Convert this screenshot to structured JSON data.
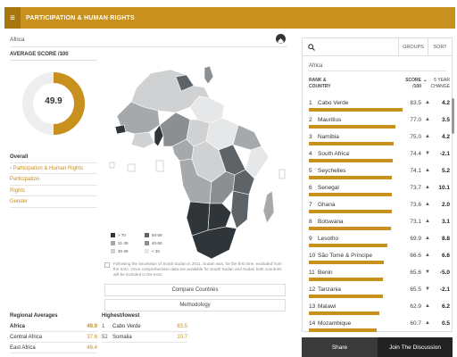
{
  "header": {
    "title": "PARTICIPATION & HUMAN RIGHTS",
    "menu_icon": "hamburger-icon"
  },
  "breadcrumb": "Africa",
  "average": {
    "title": "AVERAGE SCORE /100",
    "value": "49.9",
    "fraction": 0.499,
    "color": "#c8901c"
  },
  "nav": {
    "items": [
      {
        "label": "Overall"
      },
      {
        "label": "› Participation & Human Rights"
      },
      {
        "label": "Participation"
      },
      {
        "label": "Rights"
      },
      {
        "label": "Gender"
      }
    ]
  },
  "legend": [
    {
      "label": "> 70",
      "color": "#2f3539"
    },
    {
      "label": "50-59",
      "color": "#5e6367"
    },
    {
      "label": "31-39",
      "color": "#a6a9ab"
    },
    {
      "label": "40-50",
      "color": "#8b8f92"
    },
    {
      "label": "30-39",
      "color": "#cfd1d2"
    },
    {
      "label": "< 30",
      "color": "#e6e7e8"
    }
  ],
  "note": "Following the secession of South Sudan in 2011, Sudan was, for the first time, excluded from the IIAG. Once comprehensive data are available for South Sudan and Sudan both countries will be included in the IIAG.",
  "buttons": {
    "compare": "Compare Countries",
    "methodology": "Methodology"
  },
  "regional": {
    "title": "Regional Averages",
    "rows": [
      {
        "name": "Africa",
        "value": "49.9"
      },
      {
        "name": "Central Africa",
        "value": "37.6"
      },
      {
        "name": "East Africa",
        "value": "46.4"
      }
    ]
  },
  "highlow": {
    "title": "Highest/lowest",
    "rows": [
      {
        "rank": "1",
        "name": "Cabo Verde",
        "value": "83.5"
      },
      {
        "rank": "52",
        "name": "Somalia",
        "value": "10.7"
      }
    ]
  },
  "panel": {
    "groups_label": "GROUPS",
    "sort_label": "SORT",
    "region": "Africa",
    "col_rank": "RANK &",
    "col_country": "COUNTRY",
    "col_score": "SCORE",
    "col_score_unit": "/100",
    "col_change1": "5 YEAR",
    "col_change2": "CHANGE",
    "rows": [
      {
        "rank": "1",
        "country": "Cabo Verde",
        "score": 83.5,
        "score_text": "83.5",
        "arrow": "▲",
        "change": "4.2"
      },
      {
        "rank": "2",
        "country": "Mauritius",
        "score": 77.0,
        "score_text": "77.0",
        "arrow": "▲",
        "change": "3.5"
      },
      {
        "rank": "3",
        "country": "Namibia",
        "score": 75.0,
        "score_text": "75.0",
        "arrow": "▲",
        "change": "4.2"
      },
      {
        "rank": "4",
        "country": "South Africa",
        "score": 74.4,
        "score_text": "74.4",
        "arrow": "▼",
        "change": "-2.1"
      },
      {
        "rank": "5",
        "country": "Seychelles",
        "score": 74.1,
        "score_text": "74.1",
        "arrow": "▲",
        "change": "5.2"
      },
      {
        "rank": "6",
        "country": "Senegal",
        "score": 73.7,
        "score_text": "73.7",
        "arrow": "▲",
        "change": "10.1"
      },
      {
        "rank": "7",
        "country": "Ghana",
        "score": 73.6,
        "score_text": "73.6",
        "arrow": "▲",
        "change": "2.0"
      },
      {
        "rank": "8",
        "country": "Botswana",
        "score": 73.1,
        "score_text": "73.1",
        "arrow": "▲",
        "change": "3.1"
      },
      {
        "rank": "9",
        "country": "Lesotho",
        "score": 69.9,
        "score_text": "69.9",
        "arrow": "▲",
        "change": "8.8"
      },
      {
        "rank": "10",
        "country": "São Tomé & Príncipe",
        "score": 66.6,
        "score_text": "66.6",
        "arrow": "▲",
        "change": "6.6"
      },
      {
        "rank": "11",
        "country": "Benin",
        "score": 65.6,
        "score_text": "65.6",
        "arrow": "▼",
        "change": "-5.0"
      },
      {
        "rank": "12",
        "country": "Tanzania",
        "score": 65.5,
        "score_text": "65.5",
        "arrow": "▼",
        "change": "-2.1"
      },
      {
        "rank": "13",
        "country": "Malawi",
        "score": 62.9,
        "score_text": "62.9",
        "arrow": "▲",
        "change": "6.2"
      },
      {
        "rank": "14",
        "country": "Mozambique",
        "score": 60.7,
        "score_text": "60.7",
        "arrow": "▲",
        "change": "0.5"
      }
    ]
  },
  "footer": {
    "share": "Share",
    "join": "Join The Discussion"
  }
}
